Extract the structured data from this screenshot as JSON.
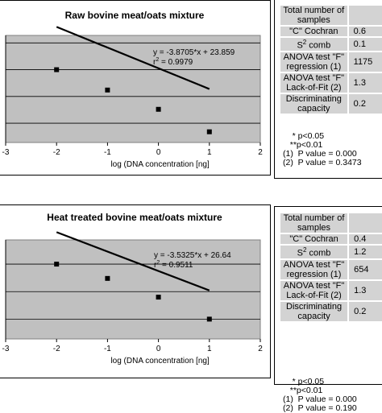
{
  "chart_data": [
    {
      "type": "scatter",
      "title": "Raw bovine meat/oats mixture",
      "xlabel": "log (DNA concentration [ng]",
      "xlim": [
        -3,
        2
      ],
      "x_ticks": [
        "-3",
        "-2",
        "-1",
        "0",
        "1",
        "2"
      ],
      "points": [
        {
          "x": -2,
          "y": 31.6
        },
        {
          "x": -1,
          "y": 27.8
        },
        {
          "x": 0,
          "y": 24.2
        },
        {
          "x": 1,
          "y": 20.0
        }
      ],
      "trendline": {
        "slope": -3.8705,
        "intercept": 23.859
      },
      "equation": "y = -3.8705*x + 23.859",
      "r2_prefix": "r",
      "r2_sup": "2",
      "r2_value": " = 0.9979",
      "grid": true
    },
    {
      "type": "scatter",
      "title": "Heat treated bovine meat/oats mixture",
      "xlabel": "log (DNA concentration [ng]",
      "xlim": [
        -3,
        2
      ],
      "x_ticks": [
        "-3",
        "-2",
        "-1",
        "0",
        "1",
        "2"
      ],
      "points": [
        {
          "x": -2,
          "y": 32.6
        },
        {
          "x": -1,
          "y": 30.0
        },
        {
          "x": 0,
          "y": 26.6
        },
        {
          "x": 1,
          "y": 22.6
        }
      ],
      "trendline": {
        "slope": -3.5325,
        "intercept": 26.64
      },
      "equation": "y = -3.5325*x + 26.64",
      "r2_prefix": "r",
      "r2_sup": "2",
      "r2_value": " = 0.9511",
      "grid": true
    }
  ],
  "panels": [
    {
      "rows": [
        {
          "label": "Total number of samples",
          "value": ""
        },
        {
          "label": "\"C\" Cochran",
          "value": "0.6"
        },
        {
          "label": "S2 comb",
          "value": "0.1"
        },
        {
          "label": "ANOVA test \"F\" regression (1)",
          "value": "1175"
        },
        {
          "label": "ANOVA test \"F\" Lack-of-Fit (2)",
          "value": "1.3"
        },
        {
          "label": "Discriminating capacity",
          "value": "0.2"
        }
      ],
      "notes": "    * p<0.05\n   **p<0.01\n(1)  P value = 0.000\n(2)  P value = 0.3473"
    },
    {
      "rows": [
        {
          "label": "Total number of samples",
          "value": ""
        },
        {
          "label": "\"C\" Cochran",
          "value": "0.4"
        },
        {
          "label": "S2 comb",
          "value": "1.2"
        },
        {
          "label": "ANOVA test \"F\" regression (1)",
          "value": "654"
        },
        {
          "label": "ANOVA test \"F\" Lack-of-Fit (2)",
          "value": "1.3"
        },
        {
          "label": "Discriminating capacity",
          "value": "0.2"
        }
      ],
      "notes": "    * p<0.05\n   **p<0.01\n(1)  P value = 0.000\n(2)  P value = 0.190"
    }
  ]
}
